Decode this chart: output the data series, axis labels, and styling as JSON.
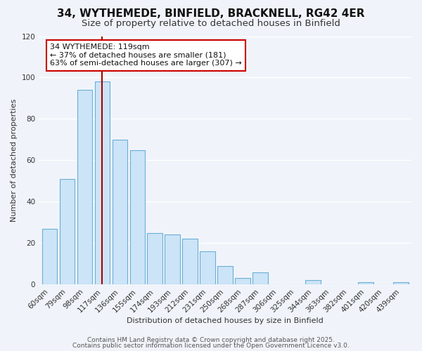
{
  "title": "34, WYTHEMEDE, BINFIELD, BRACKNELL, RG42 4ER",
  "subtitle": "Size of property relative to detached houses in Binfield",
  "xlabel": "Distribution of detached houses by size in Binfield",
  "ylabel": "Number of detached properties",
  "categories": [
    "60sqm",
    "79sqm",
    "98sqm",
    "117sqm",
    "136sqm",
    "155sqm",
    "174sqm",
    "193sqm",
    "212sqm",
    "231sqm",
    "250sqm",
    "268sqm",
    "287sqm",
    "306sqm",
    "325sqm",
    "344sqm",
    "363sqm",
    "382sqm",
    "401sqm",
    "420sqm",
    "439sqm"
  ],
  "values": [
    27,
    51,
    94,
    98,
    70,
    65,
    25,
    24,
    22,
    16,
    9,
    3,
    6,
    0,
    0,
    2,
    0,
    0,
    1,
    0,
    1
  ],
  "bar_color": "#cce4f7",
  "bar_edge_color": "#6aaed6",
  "highlight_index": 3,
  "highlight_line_color": "#aa0000",
  "annotation_box_text": "34 WYTHEMEDE: 119sqm\n← 37% of detached houses are smaller (181)\n63% of semi-detached houses are larger (307) →",
  "annotation_box_edge_color": "#cc0000",
  "annotation_box_face_color": "#ffffff",
  "ylim": [
    0,
    120
  ],
  "yticks": [
    0,
    20,
    40,
    60,
    80,
    100,
    120
  ],
  "footer1": "Contains HM Land Registry data © Crown copyright and database right 2025.",
  "footer2": "Contains public sector information licensed under the Open Government Licence v3.0.",
  "background_color": "#f0f4fa",
  "plot_bg_color": "#f0f4fa",
  "grid_color": "#ffffff",
  "title_fontsize": 11,
  "subtitle_fontsize": 9.5,
  "axis_label_fontsize": 8,
  "tick_fontsize": 7.5,
  "annotation_fontsize": 8,
  "footer_fontsize": 6.5
}
